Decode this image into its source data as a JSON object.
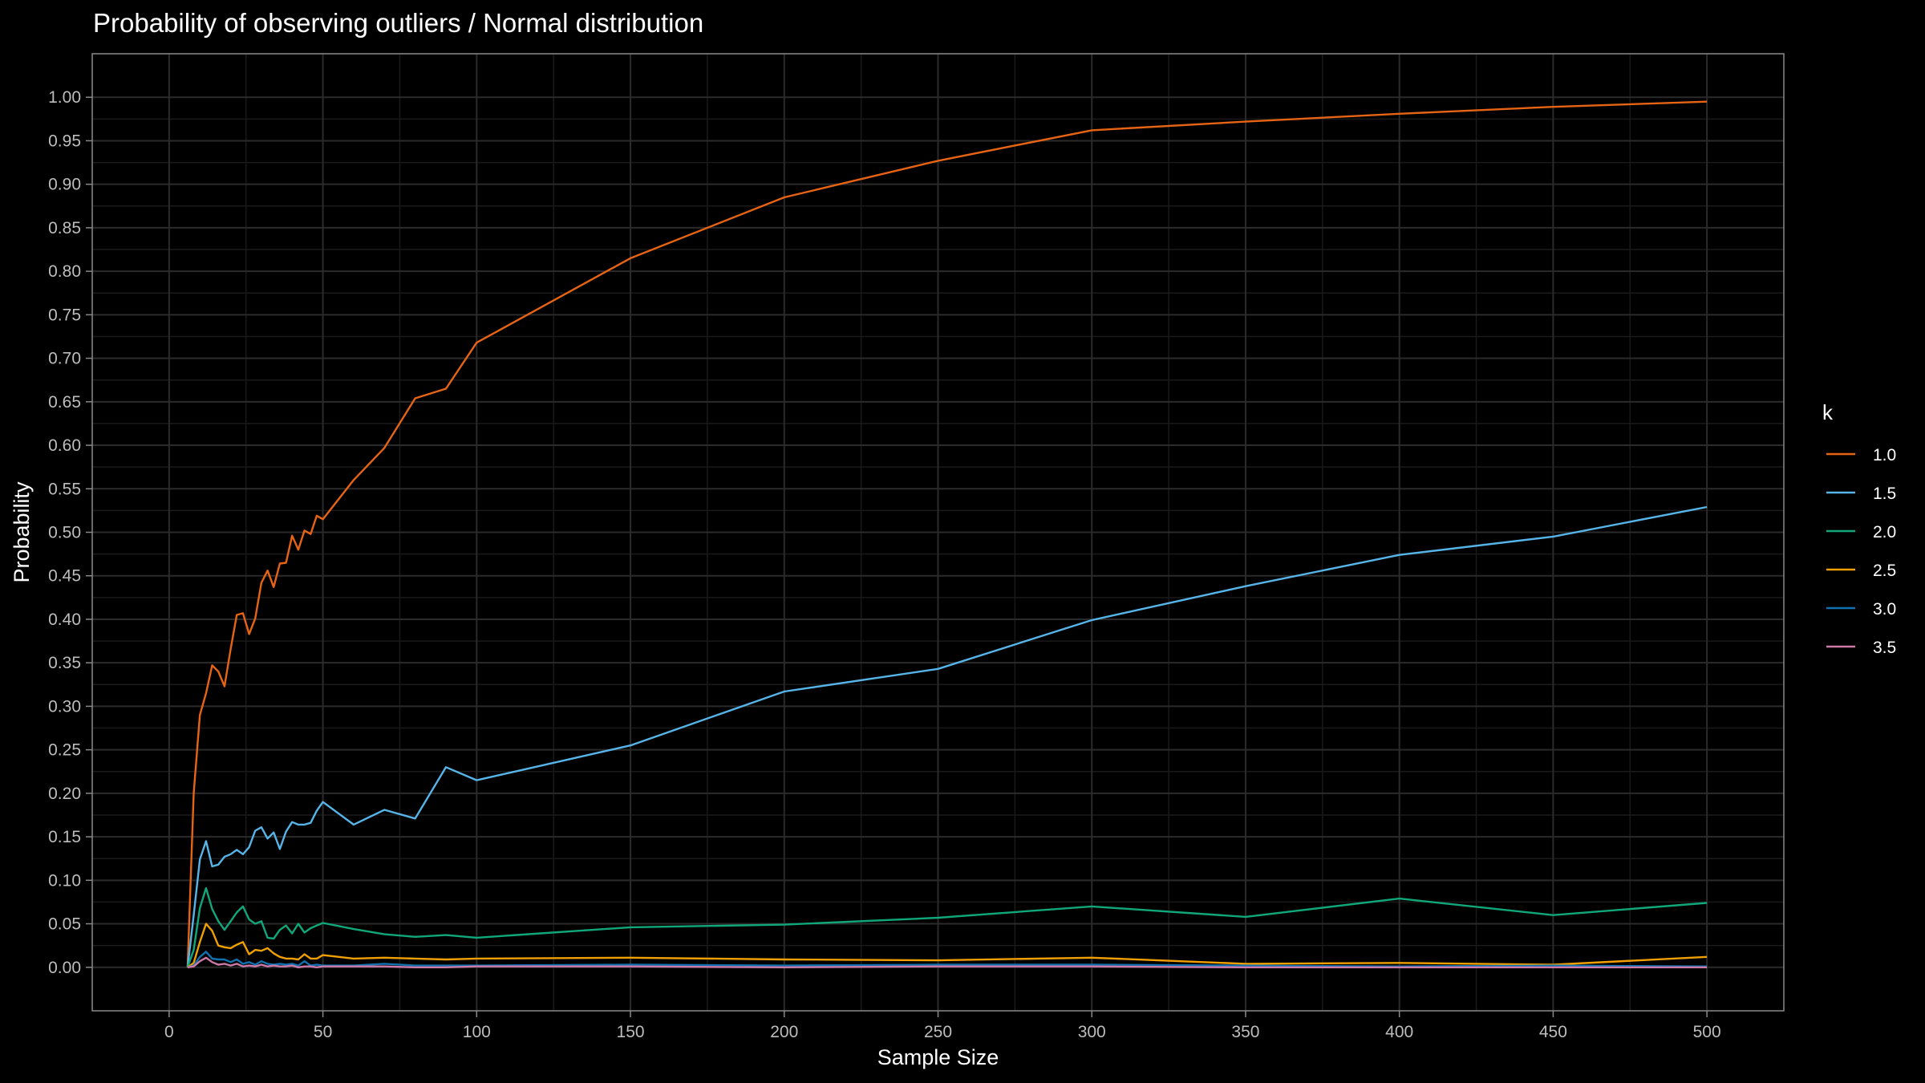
{
  "chart_data": {
    "type": "line",
    "title": "Probability of observing outliers / Normal distribution",
    "xlabel": "Sample Size",
    "ylabel": "Probability",
    "xlim": [
      -25,
      525
    ],
    "ylim": [
      -0.05,
      1.05
    ],
    "x_ticks": [
      0,
      50,
      100,
      150,
      200,
      250,
      300,
      350,
      400,
      450,
      500
    ],
    "y_ticks": [
      0,
      0.05,
      0.1,
      0.15,
      0.2,
      0.25,
      0.3,
      0.35,
      0.4,
      0.45,
      0.5,
      0.55,
      0.6,
      0.65,
      0.7,
      0.75,
      0.8,
      0.85,
      0.9,
      0.95,
      1.0
    ],
    "grid": true,
    "legend": {
      "title": "k",
      "position": "right"
    },
    "x": [
      6,
      8,
      10,
      12,
      14,
      16,
      18,
      20,
      22,
      24,
      26,
      28,
      30,
      32,
      34,
      36,
      38,
      40,
      42,
      44,
      46,
      48,
      50,
      60,
      70,
      80,
      90,
      100,
      150,
      200,
      250,
      300,
      350,
      400,
      450,
      500
    ],
    "series": [
      {
        "name": "1.0",
        "color": "#E66414",
        "values": [
          0.0,
          0.2,
          0.29,
          0.315,
          0.347,
          0.34,
          0.323,
          0.366,
          0.405,
          0.407,
          0.383,
          0.401,
          0.442,
          0.456,
          0.437,
          0.464,
          0.465,
          0.496,
          0.48,
          0.502,
          0.498,
          0.519,
          0.515,
          0.56,
          0.597,
          0.654,
          0.665,
          0.718,
          0.815,
          0.885,
          0.927,
          0.962,
          0.972,
          0.981,
          0.989,
          0.995
        ]
      },
      {
        "name": "1.5",
        "color": "#56B4E9",
        "values": [
          0.0,
          0.06,
          0.124,
          0.145,
          0.116,
          0.118,
          0.127,
          0.13,
          0.135,
          0.13,
          0.138,
          0.157,
          0.161,
          0.148,
          0.155,
          0.136,
          0.156,
          0.167,
          0.164,
          0.164,
          0.166,
          0.18,
          0.19,
          0.164,
          0.181,
          0.171,
          0.23,
          0.215,
          0.255,
          0.317,
          0.343,
          0.399,
          0.438,
          0.474,
          0.495,
          0.529
        ]
      },
      {
        "name": "2.0",
        "color": "#10A87A",
        "values": [
          0.0,
          0.02,
          0.068,
          0.091,
          0.067,
          0.053,
          0.043,
          0.053,
          0.063,
          0.07,
          0.055,
          0.05,
          0.053,
          0.034,
          0.033,
          0.043,
          0.048,
          0.039,
          0.05,
          0.04,
          0.045,
          0.048,
          0.051,
          0.044,
          0.038,
          0.035,
          0.037,
          0.034,
          0.046,
          0.049,
          0.057,
          0.07,
          0.058,
          0.079,
          0.06,
          0.074
        ]
      },
      {
        "name": "2.5",
        "color": "#F0A000",
        "values": [
          0.0,
          0.005,
          0.029,
          0.05,
          0.042,
          0.025,
          0.023,
          0.022,
          0.026,
          0.029,
          0.015,
          0.02,
          0.019,
          0.022,
          0.016,
          0.012,
          0.01,
          0.01,
          0.009,
          0.015,
          0.01,
          0.01,
          0.014,
          0.01,
          0.011,
          0.01,
          0.009,
          0.01,
          0.011,
          0.009,
          0.008,
          0.011,
          0.004,
          0.005,
          0.003,
          0.012
        ]
      },
      {
        "name": "3.0",
        "color": "#1070B0",
        "values": [
          0.0,
          0.002,
          0.012,
          0.018,
          0.01,
          0.009,
          0.009,
          0.006,
          0.009,
          0.004,
          0.006,
          0.003,
          0.007,
          0.004,
          0.003,
          0.004,
          0.003,
          0.004,
          0.002,
          0.007,
          0.002,
          0.003,
          0.002,
          0.002,
          0.004,
          0.002,
          0.002,
          0.002,
          0.003,
          0.002,
          0.003,
          0.003,
          0.002,
          0.001,
          0.002,
          0.001
        ]
      },
      {
        "name": "3.5",
        "color": "#CC79A7",
        "values": [
          0.0,
          0.001,
          0.007,
          0.011,
          0.006,
          0.003,
          0.004,
          0.002,
          0.004,
          0.001,
          0.002,
          0.001,
          0.003,
          0.001,
          0.002,
          0.001,
          0.001,
          0.002,
          0.0,
          0.001,
          0.001,
          0.0,
          0.001,
          0.001,
          0.001,
          0.0,
          0.0,
          0.001,
          0.001,
          0.0,
          0.001,
          0.001,
          0.0,
          0.0,
          0.0,
          0.0
        ]
      }
    ]
  },
  "colors": {
    "background": "#000000",
    "panel_border": "#8a8a8a",
    "grid_major": "#2b2b2b",
    "grid_minor": "#1a1a1a"
  }
}
